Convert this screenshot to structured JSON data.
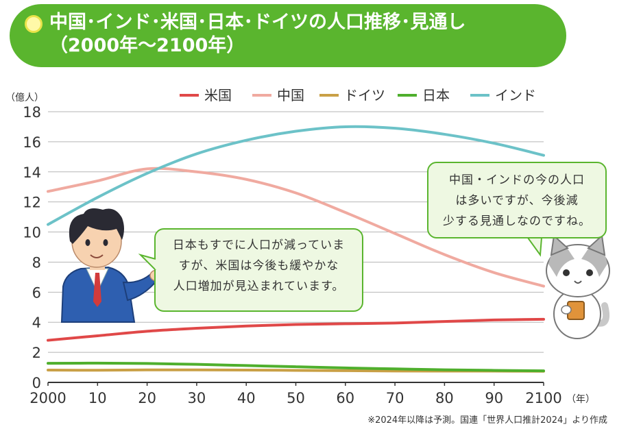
{
  "title": {
    "line1": "中国･インド･米国･日本･ドイツの人口推移･見通し",
    "line2": "（2000年～2100年）"
  },
  "chart_data": {
    "type": "line",
    "title": "中国･インド･米国･日本･ドイツの人口推移･見通し（2000年～2100年）",
    "ylabel": "（億人）",
    "xlabel": "（年）",
    "ylim": [
      0,
      18
    ],
    "yticks": [
      0,
      2,
      4,
      6,
      8,
      10,
      12,
      14,
      16,
      18
    ],
    "xlim": [
      2000,
      2100
    ],
    "xtick_values": [
      2000,
      2010,
      2020,
      2030,
      2040,
      2050,
      2060,
      2070,
      2080,
      2090,
      2100
    ],
    "xtick_labels": [
      "2000",
      "10",
      "20",
      "30",
      "40",
      "50",
      "60",
      "70",
      "80",
      "90",
      "2100"
    ],
    "x": [
      2000,
      2010,
      2020,
      2030,
      2040,
      2050,
      2060,
      2070,
      2080,
      2090,
      2100
    ],
    "series": [
      {
        "name": "米国",
        "color": "#e04848",
        "values": [
          2.8,
          3.1,
          3.4,
          3.6,
          3.75,
          3.85,
          3.9,
          3.95,
          4.05,
          4.15,
          4.2
        ]
      },
      {
        "name": "中国",
        "color": "#f0aaa0",
        "values": [
          12.7,
          13.4,
          14.2,
          14.0,
          13.5,
          12.6,
          11.3,
          9.9,
          8.5,
          7.3,
          6.4
        ]
      },
      {
        "name": "ドイツ",
        "color": "#c9a046",
        "values": [
          0.82,
          0.81,
          0.83,
          0.83,
          0.82,
          0.8,
          0.78,
          0.76,
          0.75,
          0.75,
          0.74
        ]
      },
      {
        "name": "日本",
        "color": "#4faf2d",
        "values": [
          1.27,
          1.28,
          1.26,
          1.2,
          1.12,
          1.04,
          0.96,
          0.9,
          0.84,
          0.8,
          0.77
        ]
      },
      {
        "name": "インド",
        "color": "#6cc2c8",
        "values": [
          10.5,
          12.3,
          13.9,
          15.2,
          16.1,
          16.7,
          17.0,
          16.9,
          16.5,
          15.9,
          15.1
        ]
      }
    ]
  },
  "bubbles": {
    "left": [
      "日本もすでに人口が減っていま",
      "すが、米国は今後も緩やかな",
      "人口増加が見込まれています。"
    ],
    "right": [
      "中国・インドの今の人口",
      "は多いですが、今後減",
      "少する見通しなのですね。"
    ]
  },
  "footnote": "※2024年以降は予測。国連「世界人口推計2024」より作成"
}
